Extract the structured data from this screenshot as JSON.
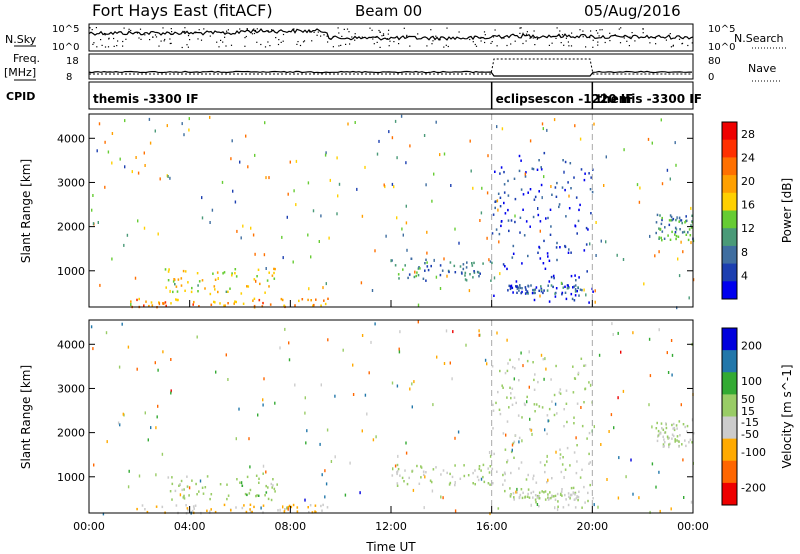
{
  "header": {
    "title": "Fort Hays East (fitACF)",
    "beam": "Beam 00",
    "date": "05/Aug/2016"
  },
  "summary": {
    "nsky_label": "N.Sky",
    "nsky_ticks": [
      "10^5",
      "10^0"
    ],
    "nsearch_label": "N.Search",
    "nsearch_ticks": [
      "10^5",
      "10^0"
    ],
    "freq_label": "Freq.",
    "freq_unit": "[MHz]",
    "freq_ticks": [
      "18",
      "8"
    ],
    "nave_label": "Nave",
    "nave_ticks": [
      "80",
      "0"
    ],
    "cpid_label": "CPID",
    "cpid_segments": [
      {
        "label": "themis -3300 IF",
        "start_h": 0,
        "end_h": 16
      },
      {
        "label": "eclipsescon -1220 IF",
        "start_h": 16,
        "end_h": 20
      },
      {
        "label": "themis -3300 IF",
        "start_h": 20,
        "end_h": 24
      }
    ]
  },
  "chart_data": [
    {
      "type": "heatmap",
      "name": "power",
      "xlabel": "Time UT",
      "ylabel": "Slant Range [km]",
      "x_ticks": [
        "00:00",
        "04:00",
        "08:00",
        "12:00",
        "16:00",
        "20:00",
        "00:00"
      ],
      "xlim_hours": [
        0,
        24
      ],
      "y_ticks": [
        1000,
        2000,
        3000,
        4000
      ],
      "ylim_km": [
        180,
        4550
      ],
      "colorbar": {
        "label": "Power [dB]",
        "ticks": [
          28,
          24,
          20,
          16,
          12,
          8,
          4
        ],
        "range": [
          0,
          30
        ],
        "colors": [
          "#0000ee",
          "#1c3fb0",
          "#3f6ea0",
          "#4a9a78",
          "#66cc33",
          "#ffd000",
          "#ffa000",
          "#ff7000",
          "#ff3000",
          "#ee0000"
        ]
      },
      "regions": [
        {
          "t": [
            3.0,
            7.5
          ],
          "r": [
            500,
            1100
          ],
          "level": 16
        },
        {
          "t": [
            1.5,
            9.5
          ],
          "r": [
            200,
            400
          ],
          "level": 20
        },
        {
          "t": [
            12.0,
            16.0
          ],
          "r": [
            800,
            1300
          ],
          "level": 8
        },
        {
          "t": [
            16.6,
            19.5
          ],
          "r": [
            500,
            700
          ],
          "level": 6
        },
        {
          "t": [
            16.0,
            20.0
          ],
          "r": [
            300,
            3700
          ],
          "level": 4
        },
        {
          "t": [
            22.5,
            24.0
          ],
          "r": [
            1700,
            2300
          ],
          "level": 10
        }
      ]
    },
    {
      "type": "heatmap",
      "name": "velocity",
      "xlabel": "Time UT",
      "ylabel": "Slant Range [km]",
      "x_ticks": [
        "00:00",
        "04:00",
        "08:00",
        "12:00",
        "16:00",
        "20:00",
        "00:00"
      ],
      "xlim_hours": [
        0,
        24
      ],
      "y_ticks": [
        1000,
        2000,
        3000,
        4000
      ],
      "ylim_km": [
        180,
        4550
      ],
      "colorbar": {
        "label": "Velocity [m s^-1]",
        "ticks": [
          200,
          100,
          50,
          15,
          -15,
          -50,
          -100,
          -200
        ],
        "range": [
          -250,
          250
        ],
        "colors": [
          "#ee0000",
          "#ff6600",
          "#ffaa00",
          "#cccccc",
          "#99cc66",
          "#33aa33",
          "#2277aa",
          "#0000dd"
        ]
      },
      "regions": [
        {
          "t": [
            3.0,
            7.5
          ],
          "r": [
            500,
            1100
          ],
          "level": 30
        },
        {
          "t": [
            1.5,
            9.5
          ],
          "r": [
            200,
            400
          ],
          "level": -60
        },
        {
          "t": [
            12.0,
            16.0
          ],
          "r": [
            800,
            1300
          ],
          "level": 0
        },
        {
          "t": [
            16.6,
            19.5
          ],
          "r": [
            500,
            700
          ],
          "level": 0
        },
        {
          "t": [
            16.0,
            20.0
          ],
          "r": [
            300,
            3700
          ],
          "level": 0
        },
        {
          "t": [
            22.5,
            24.0
          ],
          "r": [
            1700,
            2300
          ],
          "level": 0
        }
      ]
    }
  ]
}
